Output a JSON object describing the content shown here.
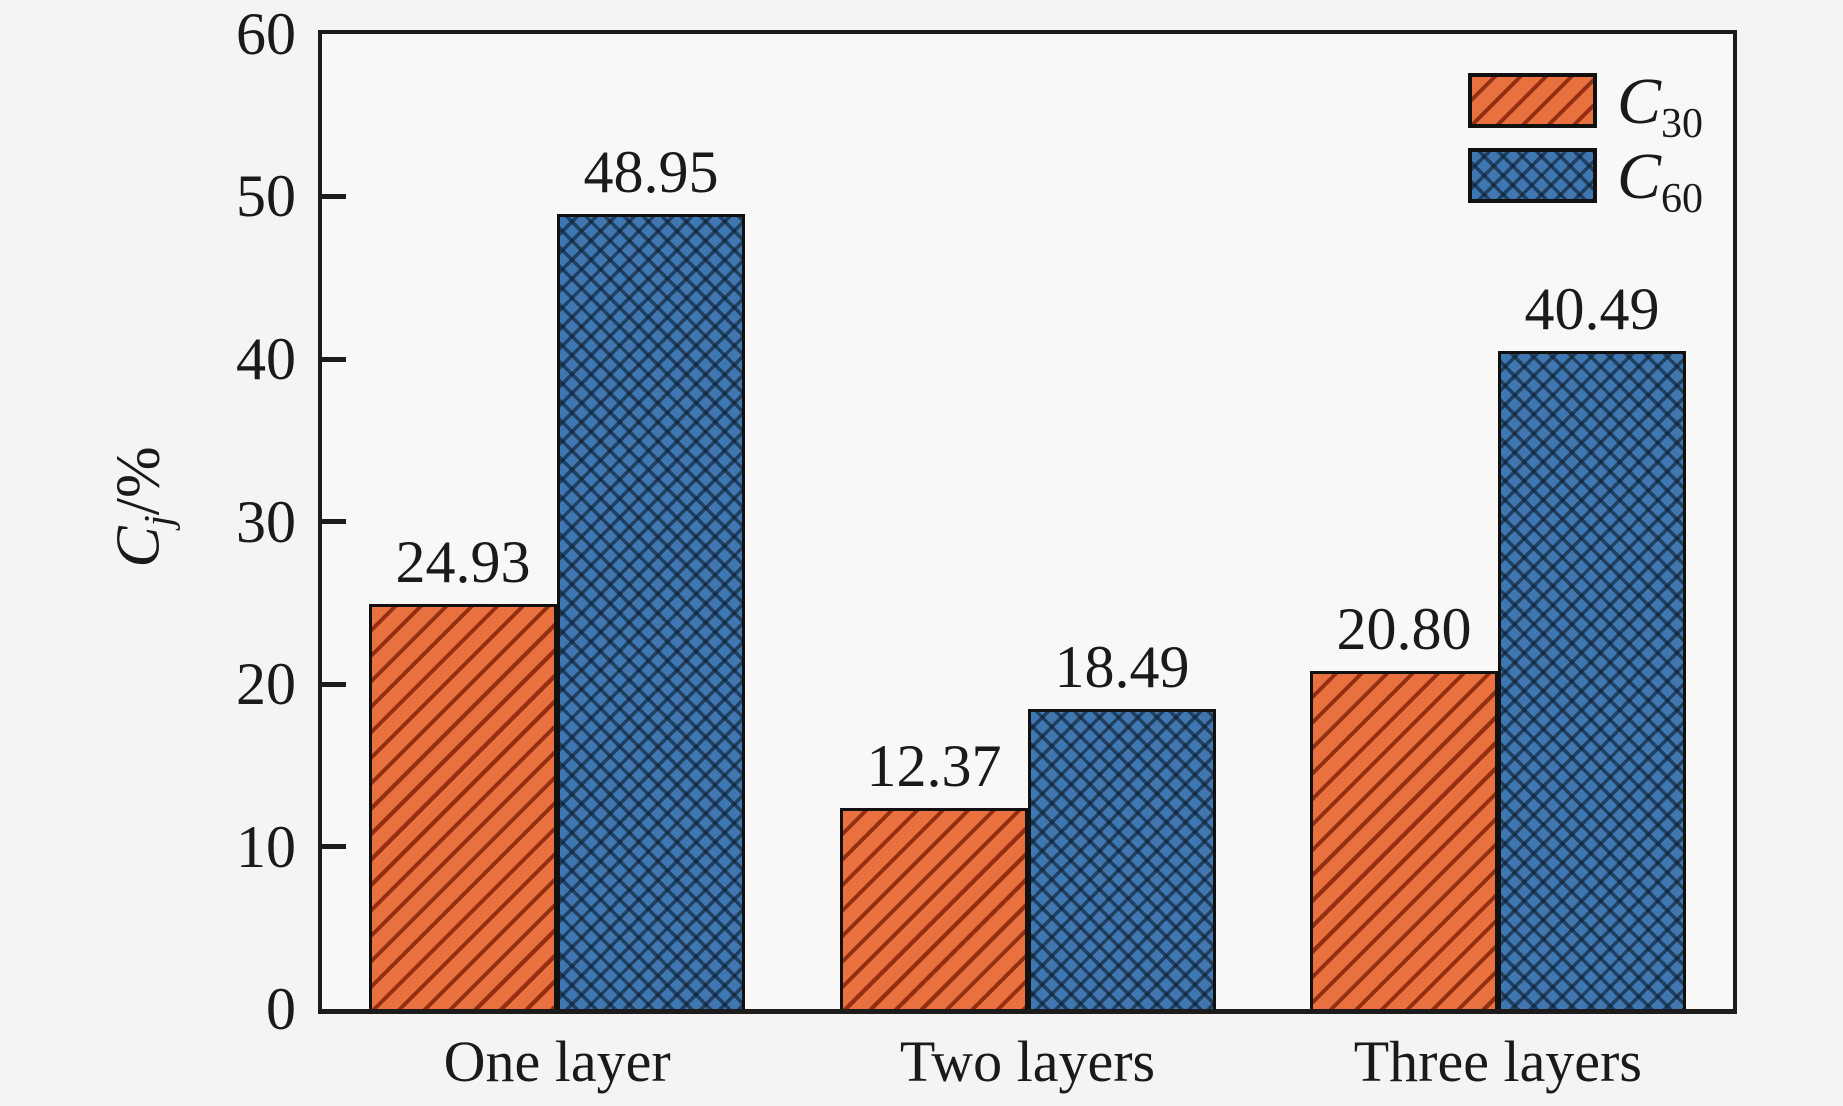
{
  "figure": {
    "background": "#f5f4f2",
    "plot_background": "#f9f8f6",
    "spine_color": "#1c1c1c",
    "text_color": "#1a1a1a"
  },
  "chart_data": {
    "type": "bar",
    "title": "",
    "categories": [
      "One layer",
      "Two layers",
      "Three layers"
    ],
    "series": [
      {
        "name": "C30",
        "label_base": "C",
        "label_sub": "30",
        "values": [
          24.93,
          12.37,
          20.8
        ],
        "value_labels": [
          "24.93",
          "12.37",
          "20.80"
        ],
        "color": "#e8713f",
        "hatch": "diagonal",
        "hatch_color": "rgba(130,32,6,0.82)"
      },
      {
        "name": "C60",
        "label_base": "C",
        "label_sub": "60",
        "values": [
          48.95,
          18.49,
          40.49
        ],
        "value_labels": [
          "48.95",
          "18.49",
          "40.49"
        ],
        "color": "#4176ae",
        "hatch": "cross",
        "hatch_color": "rgba(13,30,48,0.62)"
      }
    ],
    "ylabel": {
      "base": "C",
      "sub": "j",
      "rest": "/%"
    },
    "ylim": [
      0,
      60
    ],
    "yticks": [
      "0",
      "10",
      "20",
      "30",
      "40",
      "50",
      "60"
    ],
    "grid": false,
    "legend_position": "top-right"
  }
}
